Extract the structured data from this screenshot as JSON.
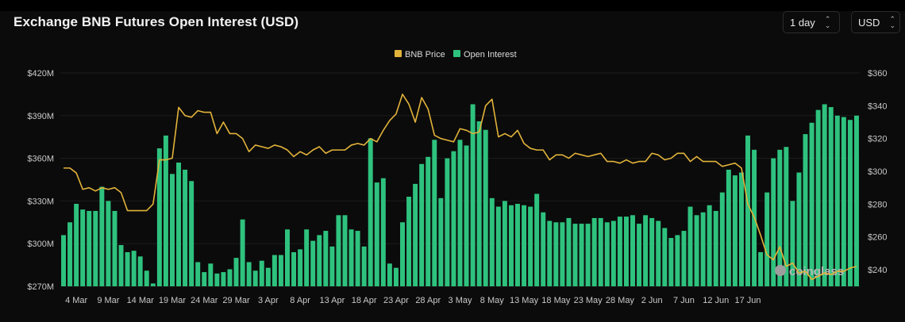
{
  "header": {
    "title": "Exchange BNB Futures Open Interest (USD)",
    "interval_select": "1 day",
    "currency_select": "USD"
  },
  "watermark": {
    "text": "coinglass"
  },
  "colors": {
    "bar": "#2ec27e",
    "price_line": "#e2b33a",
    "grid": "#1d1d1d",
    "background": "#0b0b0b"
  },
  "chart_data": {
    "type": "bar",
    "title": "Exchange BNB Futures Open Interest (USD)",
    "legend": {
      "position": "top-center",
      "items": [
        "BNB Price",
        "Open Interest"
      ]
    },
    "x_tick_labels": [
      "4 Mar",
      "9 Mar",
      "14 Mar",
      "19 Mar",
      "24 Mar",
      "29 Mar",
      "3 Apr",
      "8 Apr",
      "13 Apr",
      "18 Apr",
      "23 Apr",
      "28 Apr",
      "3 May",
      "8 May",
      "13 May",
      "18 May",
      "23 May",
      "28 May",
      "2 Jun",
      "7 Jun",
      "12 Jun",
      "17 Jun"
    ],
    "y_left": {
      "label": "",
      "ticks": [
        "$270M",
        "$300M",
        "$330M",
        "$360M",
        "$390M",
        "$420M"
      ],
      "range": [
        270,
        420
      ],
      "unit": "M USD"
    },
    "y_right": {
      "label": "",
      "ticks": [
        "$240",
        "$260",
        "$280",
        "$300",
        "$320",
        "$340",
        "$360"
      ],
      "range": [
        230,
        360
      ]
    },
    "grid": true,
    "series": [
      {
        "name": "Open Interest",
        "type": "bar",
        "axis": "left",
        "values": [
          306,
          315,
          328,
          324,
          323,
          323,
          340,
          330,
          323,
          299,
          294,
          295,
          291,
          281,
          272,
          367,
          376,
          349,
          357,
          352,
          344,
          287,
          280,
          286,
          279,
          280,
          282,
          290,
          317,
          287,
          281,
          288,
          283,
          292,
          292,
          310,
          294,
          296,
          310,
          302,
          306,
          309,
          298,
          320,
          320,
          310,
          309,
          298,
          374,
          343,
          346,
          286,
          283,
          315,
          333,
          342,
          356,
          361,
          373,
          332,
          360,
          365,
          373,
          369,
          398,
          386,
          380,
          332,
          326,
          330,
          327,
          328,
          327,
          326,
          335,
          322,
          316,
          315,
          315,
          318,
          314,
          314,
          314,
          318,
          318,
          315,
          316,
          319,
          319,
          320,
          314,
          320,
          318,
          316,
          311,
          304,
          306,
          309,
          326,
          320,
          322,
          327,
          323,
          336,
          352,
          348,
          350,
          376,
          366,
          294,
          336,
          360,
          366,
          368,
          330,
          350,
          377,
          385,
          394,
          398,
          396,
          390,
          389,
          387,
          390
        ]
      },
      {
        "name": "BNB Price",
        "type": "line",
        "axis": "right",
        "values": [
          302,
          302,
          299,
          289,
          290,
          288,
          290,
          289,
          290,
          287,
          276,
          276,
          276,
          276,
          280,
          307,
          307,
          308,
          339,
          334,
          333,
          337,
          336,
          336,
          323,
          330,
          323,
          323,
          320,
          312,
          316,
          315,
          314,
          316,
          315,
          313,
          309,
          312,
          310,
          313,
          315,
          311,
          313,
          313,
          313,
          316,
          317,
          316,
          320,
          318,
          325,
          331,
          335,
          347,
          341,
          330,
          345,
          338,
          322,
          320,
          319,
          318,
          326,
          325,
          323,
          324,
          340,
          344,
          321,
          323,
          321,
          325,
          317,
          314,
          313,
          313,
          307,
          310,
          310,
          308,
          311,
          310,
          309,
          310,
          311,
          306,
          306,
          305,
          307,
          305,
          306,
          306,
          311,
          310,
          307,
          308,
          311,
          311,
          306,
          309,
          306,
          306,
          306,
          303,
          304,
          305,
          302,
          280,
          272,
          261,
          249,
          246,
          254,
          242,
          244,
          238,
          239,
          234,
          236,
          238,
          237,
          239,
          239,
          241,
          242
        ]
      }
    ]
  }
}
